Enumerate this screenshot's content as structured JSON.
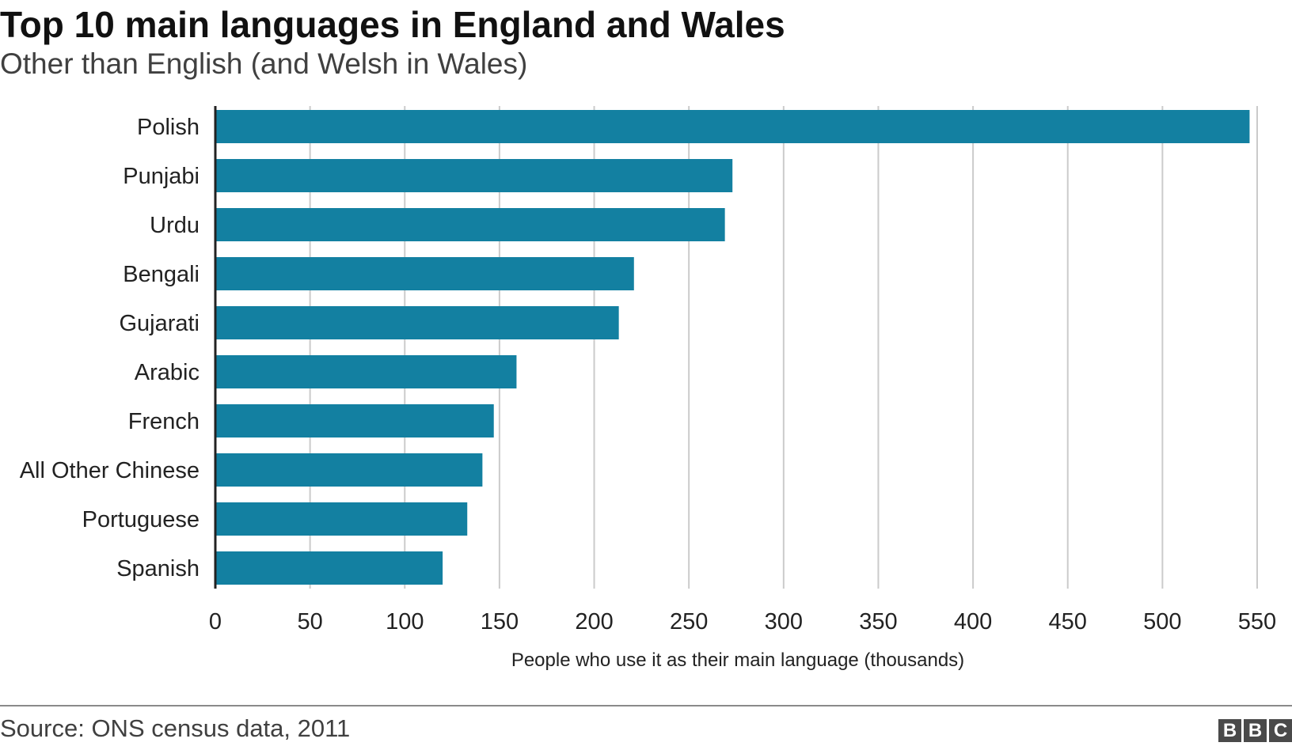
{
  "header": {
    "title": "Top 10 main languages in England and Wales",
    "subtitle": "Other than English (and Welsh in Wales)"
  },
  "footer": {
    "source": "Source: ONS census data, 2011",
    "logo_letters": [
      "B",
      "B",
      "C"
    ]
  },
  "colors": {
    "bar": "#1380A1",
    "grid": "#cbcbcb",
    "axis": "#222222",
    "text": "#222222"
  },
  "chart_data": {
    "type": "bar",
    "orientation": "horizontal",
    "categories": [
      "Polish",
      "Punjabi",
      "Urdu",
      "Bengali",
      "Gujarati",
      "Arabic",
      "French",
      "All Other Chinese",
      "Portuguese",
      "Spanish"
    ],
    "values": [
      546,
      273,
      269,
      221,
      213,
      159,
      147,
      141,
      133,
      120
    ],
    "xlabel": "People who use it as their main language (thousands)",
    "xlim": [
      0,
      550
    ],
    "xticks": [
      0,
      50,
      100,
      150,
      200,
      250,
      300,
      350,
      400,
      450,
      500,
      550
    ],
    "grid": true
  }
}
